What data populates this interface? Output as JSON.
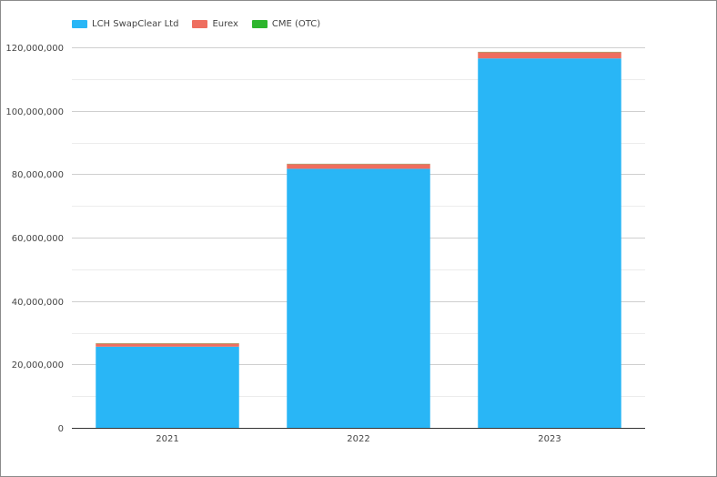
{
  "chart_data": {
    "type": "bar",
    "stacked": true,
    "categories": [
      "2021",
      "2022",
      "2023"
    ],
    "series": [
      {
        "name": "LCH SwapClear Ltd",
        "color": "#29b6f6",
        "values": [
          25600000,
          81700000,
          116500000
        ]
      },
      {
        "name": "Eurex",
        "color": "#ee6e5f",
        "values": [
          1000000,
          1500000,
          2000000
        ]
      },
      {
        "name": "CME (OTC)",
        "color": "#2db52d",
        "values": [
          80000,
          80000,
          80000
        ]
      }
    ],
    "yticks": [
      0,
      20000000,
      40000000,
      60000000,
      80000000,
      100000000,
      120000000
    ],
    "ytick_labels": [
      "0",
      "20,000,000",
      "40,000,000",
      "60,000,000",
      "80,000,000",
      "100,000,000",
      "120,000,000"
    ],
    "ylim": [
      0,
      120000000
    ],
    "title": "",
    "xlabel": "",
    "ylabel": "",
    "grid": true,
    "legend_position": "top-left"
  }
}
